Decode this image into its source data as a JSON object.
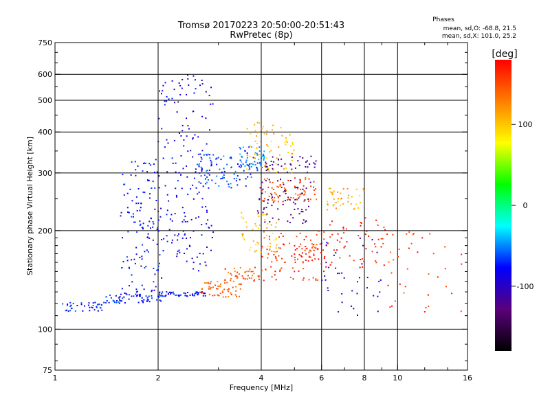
{
  "chart_data": {
    "type": "scatter",
    "title": "Tromsø 20170223 20:50:00-20:51:43",
    "subtitle": "RwPretec (8p)",
    "stats": {
      "heading": "Phases",
      "line_o": "mean, sd,O: -68.8, 21.5",
      "line_x": "mean, sd,X: 101.0, 25.2"
    },
    "xlabel": "Frequency [MHz]",
    "ylabel": "Stationary phase Virtual Height [km]",
    "x_scale": "log",
    "y_scale": "log",
    "xlim": [
      1,
      16
    ],
    "ylim": [
      75,
      750
    ],
    "x_ticks": [
      1,
      2,
      4,
      6,
      8,
      10,
      16
    ],
    "x_tick_labels": [
      "1",
      "2",
      "4",
      "6",
      "8",
      "10",
      "16"
    ],
    "y_ticks": [
      75,
      100,
      200,
      300,
      400,
      500,
      600,
      750
    ],
    "y_tick_labels": [
      "75",
      "100",
      "200",
      "300",
      "400",
      "500",
      "600",
      "750"
    ],
    "grid": true,
    "colorbar": {
      "label": "[deg]",
      "range": [
        -180,
        180
      ],
      "ticks": [
        100,
        0,
        -100
      ],
      "tick_labels": [
        "100",
        "0",
        "-100"
      ],
      "stops": [
        "#000000",
        "#5a007a",
        "#0000ff",
        "#00ffff",
        "#00ff00",
        "#ffff00",
        "#ff7f00",
        "#ff0000"
      ]
    },
    "traces": [
      {
        "x": [
          1.05,
          1.4
        ],
        "y": [
          113,
          121
        ],
        "phase": -75,
        "n": 40
      },
      {
        "x": [
          1.4,
          2.05
        ],
        "y": [
          120,
          128
        ],
        "phase": -72,
        "n": 60
      },
      {
        "x": [
          2.0,
          2.75
        ],
        "y": [
          126,
          130
        ],
        "phase": -76,
        "n": 55
      },
      {
        "x": [
          1.55,
          2.05
        ],
        "y": [
          126,
          330
        ],
        "phase": -80,
        "n": 130
      },
      {
        "x": [
          2.0,
          2.9
        ],
        "y": [
          150,
          600
        ],
        "phase": -88,
        "n": 190
      },
      {
        "x": [
          2.6,
          3.8
        ],
        "y": [
          270,
          345
        ],
        "phase": -65,
        "n": 80
      },
      {
        "x": [
          3.4,
          4.1
        ],
        "y": [
          305,
          360
        ],
        "phase": -55,
        "n": 55
      },
      {
        "x": [
          2.65,
          3.5
        ],
        "y": [
          125,
          140
        ],
        "phase": 140,
        "n": 55
      },
      {
        "x": [
          3.1,
          4.0
        ],
        "y": [
          140,
          155
        ],
        "phase": 145,
        "n": 45
      },
      {
        "x": [
          4.0,
          5.8
        ],
        "y": [
          245,
          290
        ],
        "phase": 150,
        "n": 75
      },
      {
        "x": [
          4.0,
          6.0
        ],
        "y": [
          140,
          200
        ],
        "phase": 160,
        "n": 80
      },
      {
        "x": [
          5.0,
          6.0
        ],
        "y": [
          160,
          180
        ],
        "phase": 165,
        "n": 30
      },
      {
        "x": [
          3.6,
          5.0
        ],
        "y": [
          300,
          430
        ],
        "phase": 105,
        "n": 70
      },
      {
        "x": [
          3.5,
          4.5
        ],
        "y": [
          170,
          230
        ],
        "phase": 100,
        "n": 50
      },
      {
        "x": [
          6.2,
          8.0
        ],
        "y": [
          230,
          270
        ],
        "phase": 110,
        "n": 40
      },
      {
        "x": [
          3.9,
          5.6
        ],
        "y": [
          210,
          290
        ],
        "phase": -130,
        "n": 70
      },
      {
        "x": [
          4.1,
          5.8
        ],
        "y": [
          300,
          340
        ],
        "phase": -120,
        "n": 40
      },
      {
        "x": [
          6.0,
          9.2
        ],
        "y": [
          150,
          220
        ],
        "phase": 170,
        "n": 60
      },
      {
        "x": [
          6.0,
          9.0
        ],
        "y": [
          110,
          190
        ],
        "phase": -100,
        "n": 40
      },
      {
        "x": [
          9.2,
          15.5
        ],
        "y": [
          110,
          200
        ],
        "phase": 160,
        "n": 40
      }
    ]
  }
}
